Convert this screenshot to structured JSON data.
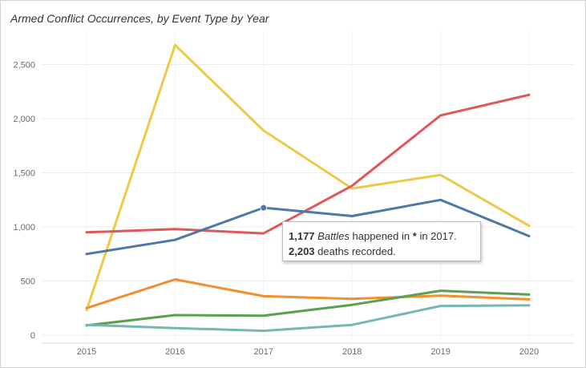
{
  "chart_data": {
    "type": "line",
    "title": "Armed Conflict Occurrences, by Event Type by Year",
    "x": [
      2015,
      2016,
      2017,
      2018,
      2019,
      2020
    ],
    "ylim": [
      0,
      2850
    ],
    "yticks": [
      0,
      500,
      1000,
      1500,
      2000,
      2500
    ],
    "ytick_labels": [
      "0",
      "500",
      "1,000",
      "1,500",
      "2,000",
      "2,500"
    ],
    "xtick_labels": [
      "2015",
      "2016",
      "2017",
      "2018",
      "2019",
      "2020"
    ],
    "grid": true,
    "legend": "none",
    "series": [
      {
        "color": "#edc948",
        "values": [
          230,
          2680,
          1890,
          1355,
          1480,
          1010
        ]
      },
      {
        "color": "#e15759",
        "values": [
          950,
          980,
          940,
          1380,
          2030,
          2220
        ]
      },
      {
        "color": "#4e79a7",
        "values": [
          750,
          880,
          1177,
          1100,
          1250,
          915
        ]
      },
      {
        "color": "#f28e2b",
        "values": [
          250,
          515,
          360,
          335,
          365,
          330
        ]
      },
      {
        "color": "#59a14f",
        "values": [
          90,
          185,
          180,
          280,
          410,
          375
        ]
      },
      {
        "color": "#76b7b2",
        "values": [
          95,
          65,
          40,
          95,
          270,
          275
        ]
      }
    ],
    "highlight": {
      "series_index": 2,
      "point_index": 2
    },
    "tooltip": {
      "count": "1,177",
      "event_type": "Battles",
      "text_happened": "happened in",
      "location": "*",
      "text_in": "in 2017.",
      "deaths": "2,203",
      "text_deaths": "deaths recorded."
    }
  }
}
